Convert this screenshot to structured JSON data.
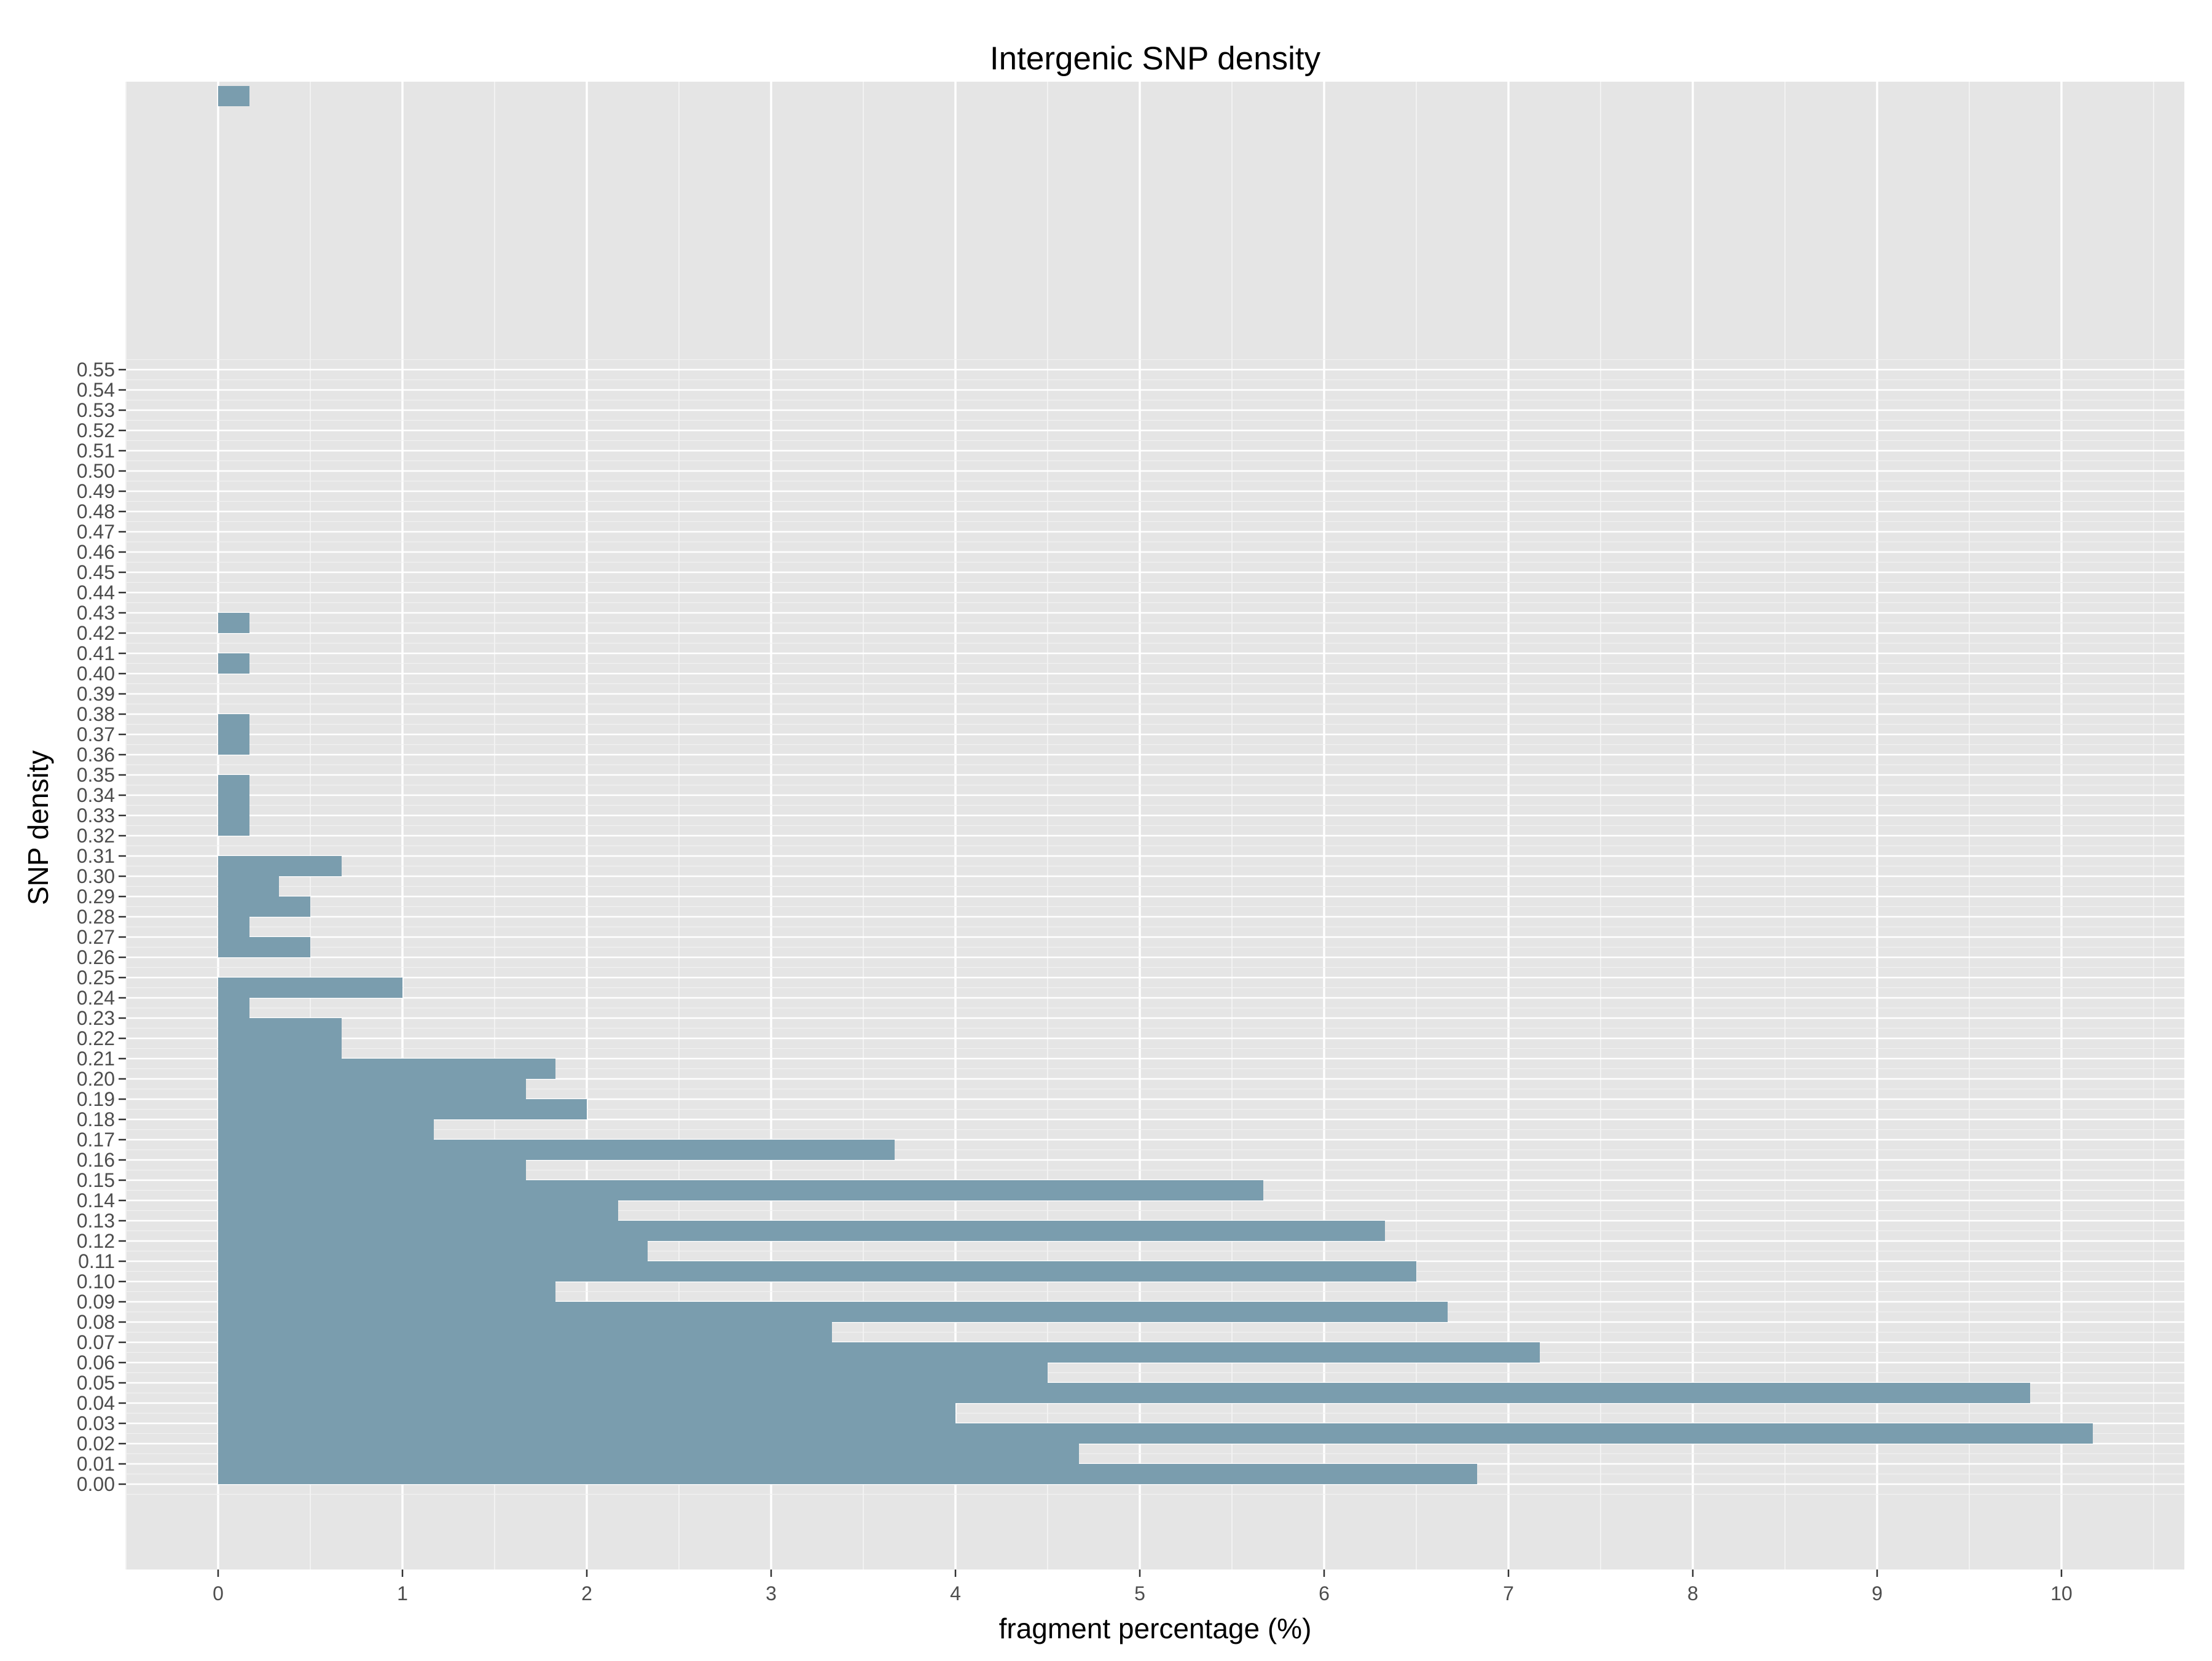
{
  "chart_data": {
    "type": "bar",
    "orientation": "horizontal",
    "title": "Intergenic SNP density",
    "xlabel": "fragment percentage (%)",
    "ylabel": "SNP density",
    "xlim": [
      -0.5,
      10.5
    ],
    "x_ticks": [
      "0",
      "1",
      "2",
      "3",
      "4",
      "5",
      "6",
      "7",
      "8",
      "9",
      "10"
    ],
    "y_ticks": [
      "0.00",
      "0.01",
      "0.02",
      "0.03",
      "0.04",
      "0.05",
      "0.06",
      "0.07",
      "0.08",
      "0.09",
      "0.10",
      "0.11",
      "0.12",
      "0.13",
      "0.14",
      "0.15",
      "0.16",
      "0.17",
      "0.18",
      "0.19",
      "0.20",
      "0.21",
      "0.22",
      "0.23",
      "0.24",
      "0.25",
      "0.26",
      "0.27",
      "0.28",
      "0.29",
      "0.30",
      "0.31",
      "0.32",
      "0.33",
      "0.34",
      "0.35",
      "0.36",
      "0.37",
      "0.38",
      "0.39",
      "0.40",
      "0.41",
      "0.42",
      "0.43",
      "0.44",
      "0.45",
      "0.46",
      "0.47",
      "0.48",
      "0.49",
      "0.50",
      "0.51",
      "0.52",
      "0.53",
      "0.54",
      "0.55"
    ],
    "bin_width": 0.01,
    "bars": [
      {
        "from": 0.0,
        "to": 0.01,
        "value": 6.83
      },
      {
        "from": 0.01,
        "to": 0.02,
        "value": 4.67
      },
      {
        "from": 0.02,
        "to": 0.03,
        "value": 10.17
      },
      {
        "from": 0.03,
        "to": 0.04,
        "value": 4.0
      },
      {
        "from": 0.04,
        "to": 0.05,
        "value": 9.83
      },
      {
        "from": 0.05,
        "to": 0.06,
        "value": 4.5
      },
      {
        "from": 0.06,
        "to": 0.07,
        "value": 7.17
      },
      {
        "from": 0.07,
        "to": 0.08,
        "value": 3.33
      },
      {
        "from": 0.08,
        "to": 0.09,
        "value": 6.67
      },
      {
        "from": 0.09,
        "to": 0.1,
        "value": 1.83
      },
      {
        "from": 0.1,
        "to": 0.11,
        "value": 6.5
      },
      {
        "from": 0.11,
        "to": 0.12,
        "value": 2.33
      },
      {
        "from": 0.12,
        "to": 0.13,
        "value": 6.33
      },
      {
        "from": 0.13,
        "to": 0.14,
        "value": 2.17
      },
      {
        "from": 0.14,
        "to": 0.15,
        "value": 5.67
      },
      {
        "from": 0.15,
        "to": 0.16,
        "value": 1.67
      },
      {
        "from": 0.16,
        "to": 0.17,
        "value": 3.67
      },
      {
        "from": 0.17,
        "to": 0.18,
        "value": 1.17
      },
      {
        "from": 0.18,
        "to": 0.19,
        "value": 2.0
      },
      {
        "from": 0.19,
        "to": 0.2,
        "value": 1.67
      },
      {
        "from": 0.2,
        "to": 0.21,
        "value": 1.83
      },
      {
        "from": 0.21,
        "to": 0.22,
        "value": 0.67
      },
      {
        "from": 0.22,
        "to": 0.23,
        "value": 0.67
      },
      {
        "from": 0.23,
        "to": 0.24,
        "value": 0.17
      },
      {
        "from": 0.24,
        "to": 0.25,
        "value": 1.0
      },
      {
        "from": 0.26,
        "to": 0.27,
        "value": 0.5
      },
      {
        "from": 0.27,
        "to": 0.28,
        "value": 0.17
      },
      {
        "from": 0.28,
        "to": 0.29,
        "value": 0.5
      },
      {
        "from": 0.29,
        "to": 0.3,
        "value": 0.33
      },
      {
        "from": 0.3,
        "to": 0.31,
        "value": 0.67
      },
      {
        "from": 0.32,
        "to": 0.33,
        "value": 0.17
      },
      {
        "from": 0.33,
        "to": 0.34,
        "value": 0.17
      },
      {
        "from": 0.34,
        "to": 0.35,
        "value": 0.17
      },
      {
        "from": 0.36,
        "to": 0.37,
        "value": 0.17
      },
      {
        "from": 0.37,
        "to": 0.38,
        "value": 0.17
      },
      {
        "from": 0.4,
        "to": 0.41,
        "value": 0.17
      },
      {
        "from": 0.42,
        "to": 0.43,
        "value": 0.17
      },
      {
        "from": 0.68,
        "to": 0.69,
        "value": 0.17
      }
    ],
    "bar_color": "#7a9dae",
    "panel_background": "#e5e5e5",
    "grid": true,
    "grid_color": "#ffffff",
    "legend": "none"
  }
}
